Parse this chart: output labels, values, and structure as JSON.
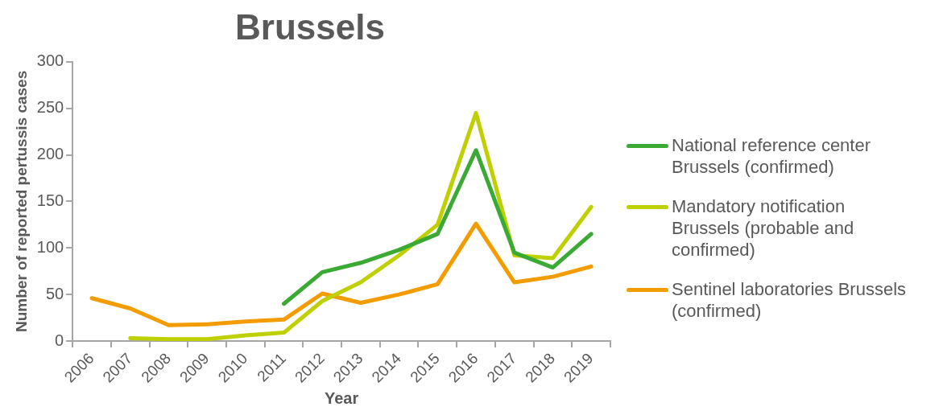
{
  "chart_data": {
    "type": "line",
    "title": "Brussels",
    "xlabel": "Year",
    "ylabel": "Number of reported pertussis cases",
    "categories": [
      "2006",
      "2007",
      "2008",
      "2009",
      "2010",
      "2011",
      "2012",
      "2013",
      "2014",
      "2015",
      "2016",
      "2017",
      "2018",
      "2019"
    ],
    "ylim": [
      0,
      300
    ],
    "yticks": [
      0,
      50,
      100,
      150,
      200,
      250,
      300
    ],
    "grid": false,
    "legend": "right",
    "marker": "none",
    "line_style": "solid",
    "series": [
      {
        "name": "National reference center Brussels (confirmed)",
        "color": "#3aaa35",
        "values": [
          null,
          null,
          null,
          null,
          null,
          40,
          74,
          84,
          98,
          115,
          205,
          95,
          79,
          115
        ]
      },
      {
        "name": "Mandatory notification Brussels (probable and confirmed)",
        "color": "#bed000",
        "values": [
          null,
          3,
          2,
          2,
          6,
          9,
          43,
          63,
          92,
          125,
          245,
          92,
          89,
          144
        ]
      },
      {
        "name": "Sentinel laboratories Brussels (confirmed)",
        "color": "#f39c00",
        "values": [
          46,
          35,
          17,
          18,
          21,
          23,
          51,
          41,
          50,
          61,
          126,
          63,
          69,
          80
        ]
      }
    ]
  }
}
